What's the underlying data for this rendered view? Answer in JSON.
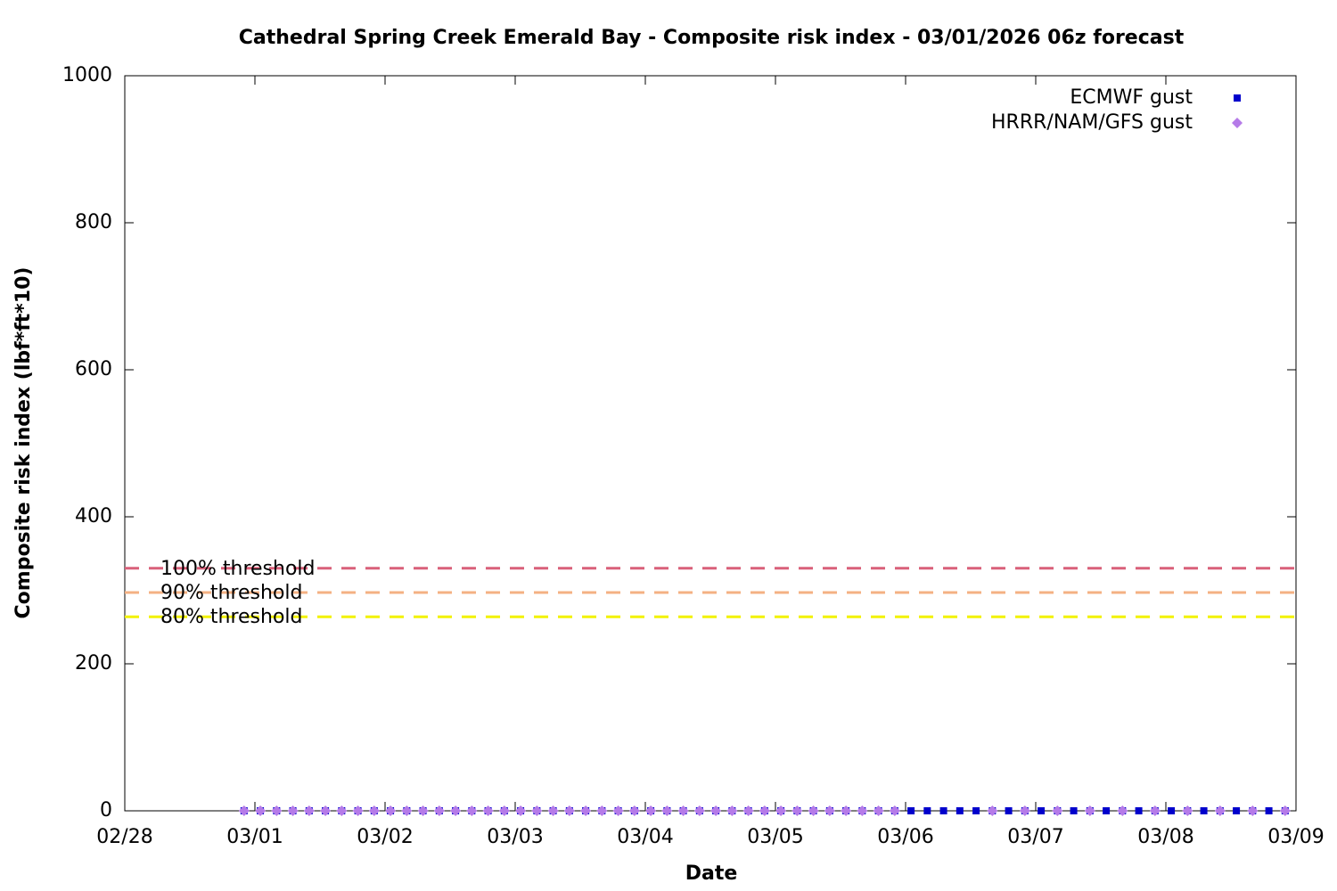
{
  "chart_data": {
    "type": "scatter",
    "title": "Cathedral Spring Creek Emerald Bay - Composite risk index - 03/01/2026 06z forecast",
    "xlabel": "Date",
    "ylabel": "Composite risk index (lbf*ft*10)",
    "xlim": [
      "02/28",
      "03/09"
    ],
    "xticks": [
      "02/28",
      "03/01",
      "03/02",
      "03/03",
      "03/04",
      "03/05",
      "03/06",
      "03/07",
      "03/08",
      "03/09"
    ],
    "ylim": [
      0,
      1000
    ],
    "yticks": [
      0,
      200,
      400,
      600,
      800,
      1000
    ],
    "legend": "top-right",
    "series": [
      {
        "name": "ECMWF gust",
        "color": "#0000cc",
        "marker": "square",
        "x": [
          "02/28 22:00",
          "03/01 01:00",
          "03/01 04:00",
          "03/01 07:00",
          "03/01 10:00",
          "03/01 13:00",
          "03/01 16:00",
          "03/01 19:00",
          "03/01 22:00",
          "03/02 01:00",
          "03/02 04:00",
          "03/02 07:00",
          "03/02 10:00",
          "03/02 13:00",
          "03/02 16:00",
          "03/02 19:00",
          "03/02 22:00",
          "03/03 01:00",
          "03/03 04:00",
          "03/03 07:00",
          "03/03 10:00",
          "03/03 13:00",
          "03/03 16:00",
          "03/03 19:00",
          "03/03 22:00",
          "03/04 01:00",
          "03/04 04:00",
          "03/04 07:00",
          "03/04 10:00",
          "03/04 13:00",
          "03/04 16:00",
          "03/04 19:00",
          "03/04 22:00",
          "03/05 01:00",
          "03/05 04:00",
          "03/05 07:00",
          "03/05 10:00",
          "03/05 13:00",
          "03/05 16:00",
          "03/05 19:00",
          "03/05 22:00",
          "03/06 01:00",
          "03/06 04:00",
          "03/06 07:00",
          "03/06 10:00",
          "03/06 13:00",
          "03/06 16:00",
          "03/06 19:00",
          "03/06 22:00",
          "03/07 01:00",
          "03/07 04:00",
          "03/07 07:00",
          "03/07 10:00",
          "03/07 13:00",
          "03/07 16:00",
          "03/07 19:00",
          "03/07 22:00",
          "03/08 01:00",
          "03/08 04:00",
          "03/08 07:00",
          "03/08 10:00",
          "03/08 13:00",
          "03/08 16:00",
          "03/08 19:00",
          "03/08 22:00"
        ],
        "values": [
          0,
          0,
          0,
          0,
          0,
          0,
          0,
          0,
          0,
          0,
          0,
          0,
          0,
          0,
          0,
          0,
          0,
          0,
          0,
          0,
          0,
          0,
          0,
          0,
          0,
          0,
          0,
          0,
          0,
          0,
          0,
          0,
          0,
          0,
          0,
          0,
          0,
          0,
          0,
          0,
          0,
          0,
          0,
          0,
          0,
          0,
          0,
          0,
          0,
          0,
          0,
          0,
          0,
          0,
          0,
          0,
          0,
          0,
          0,
          0,
          0,
          0,
          0,
          0,
          0
        ]
      },
      {
        "name": "HRRR/NAM/GFS gust",
        "color": "#b57be8",
        "marker": "diamond",
        "x": [
          "02/28 22:00",
          "03/01 01:00",
          "03/01 04:00",
          "03/01 07:00",
          "03/01 10:00",
          "03/01 13:00",
          "03/01 16:00",
          "03/01 19:00",
          "03/01 22:00",
          "03/02 01:00",
          "03/02 04:00",
          "03/02 07:00",
          "03/02 10:00",
          "03/02 13:00",
          "03/02 16:00",
          "03/02 19:00",
          "03/02 22:00",
          "03/03 01:00",
          "03/03 04:00",
          "03/03 07:00",
          "03/03 10:00",
          "03/03 13:00",
          "03/03 16:00",
          "03/03 19:00",
          "03/03 22:00",
          "03/04 01:00",
          "03/04 04:00",
          "03/04 07:00",
          "03/04 10:00",
          "03/04 13:00",
          "03/04 16:00",
          "03/04 19:00",
          "03/04 22:00",
          "03/05 01:00",
          "03/05 04:00",
          "03/05 07:00",
          "03/05 10:00",
          "03/05 13:00",
          "03/05 16:00",
          "03/05 19:00",
          "03/05 22:00",
          "03/06 16:00",
          "03/06 22:00",
          "03/07 04:00",
          "03/07 10:00",
          "03/07 16:00",
          "03/07 22:00",
          "03/08 04:00",
          "03/08 10:00",
          "03/08 16:00",
          "03/08 22:00"
        ],
        "values": [
          0,
          0,
          0,
          0,
          0,
          0,
          0,
          0,
          0,
          0,
          0,
          0,
          0,
          0,
          0,
          0,
          0,
          0,
          0,
          0,
          0,
          0,
          0,
          0,
          0,
          0,
          0,
          0,
          0,
          0,
          0,
          0,
          0,
          0,
          0,
          0,
          0,
          0,
          0,
          0,
          0,
          0,
          0,
          0,
          0,
          0,
          0,
          0,
          0,
          0,
          0
        ]
      }
    ],
    "thresholds": [
      {
        "name": "100% threshold",
        "value": 330,
        "color": "#d9607a"
      },
      {
        "name": "90% threshold",
        "value": 297,
        "color": "#f4b183"
      },
      {
        "name": "80% threshold",
        "value": 264,
        "color": "#f2f200"
      }
    ]
  }
}
